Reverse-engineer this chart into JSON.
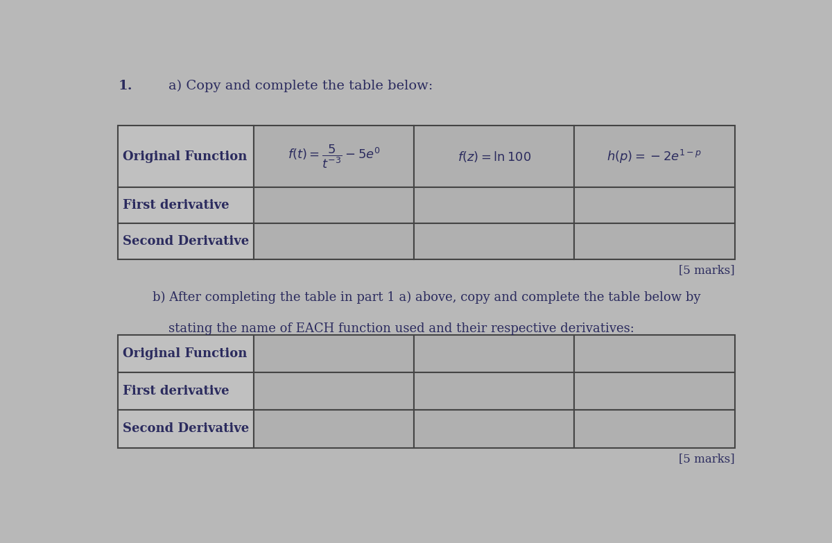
{
  "background_color": "#b8b8b8",
  "title_number": "1.",
  "part_a_text": "a) Copy and complete the table below:",
  "part_b_line1": "b) After completing the table in part 1 a) above, copy and complete the table below by",
  "part_b_line2": "    stating the name of EACH function used and their respective derivatives:",
  "marks_a": "[5 marks]",
  "marks_b": "[5 marks]",
  "table_a_header_col": "Original Function",
  "table_a_rows": [
    "First derivative",
    "Second Derivative"
  ],
  "table_a_col1": "$f(t) = \\dfrac{5}{t^{-3}} - 5e^{0}$",
  "table_a_col2": "$f(z) = \\ln 100$",
  "table_a_col3": "$h(p) = -2e^{1-p}$",
  "table_b_header_col": "Original Function",
  "table_b_rows": [
    "First derivative",
    "Second Derivative"
  ],
  "cell_bg_light": "#c0c0c0",
  "cell_bg_dark": "#b0b0b0",
  "text_color": "#2b2b5e",
  "border_color": "#444444",
  "font_size_heading": 14,
  "font_size_body": 13,
  "font_size_marks": 12,
  "font_size_math": 13
}
